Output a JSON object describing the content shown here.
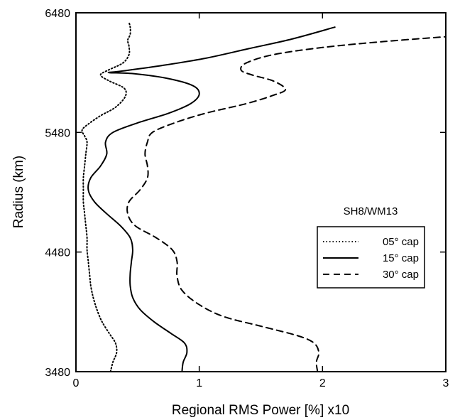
{
  "chart_data": {
    "type": "line",
    "title": "",
    "xlabel": "Regional RMS Power [%] x10",
    "ylabel": "Radius (km)",
    "xlim": [
      0,
      3
    ],
    "ylim": [
      3480,
      6480
    ],
    "xticks": [
      "0",
      "1",
      "2",
      "3"
    ],
    "yticks": [
      "3480",
      "4480",
      "5480",
      "6480"
    ],
    "grid": false,
    "legend": {
      "title": "SH8/WM13",
      "placement": "right",
      "entries": [
        "05° cap",
        "15° cap",
        "30° cap"
      ]
    },
    "series": [
      {
        "name": "05° cap",
        "style": "dotted",
        "points": [
          [
            0.28,
            3480
          ],
          [
            0.3,
            3560
          ],
          [
            0.33,
            3640
          ],
          [
            0.32,
            3720
          ],
          [
            0.27,
            3800
          ],
          [
            0.21,
            3900
          ],
          [
            0.17,
            4000
          ],
          [
            0.14,
            4100
          ],
          [
            0.12,
            4200
          ],
          [
            0.11,
            4300
          ],
          [
            0.1,
            4400
          ],
          [
            0.09,
            4500
          ],
          [
            0.09,
            4600
          ],
          [
            0.08,
            4700
          ],
          [
            0.07,
            4800
          ],
          [
            0.06,
            4900
          ],
          [
            0.06,
            5000
          ],
          [
            0.06,
            5100
          ],
          [
            0.07,
            5200
          ],
          [
            0.08,
            5300
          ],
          [
            0.09,
            5400
          ],
          [
            0.07,
            5450
          ],
          [
            0.05,
            5500
          ],
          [
            0.1,
            5550
          ],
          [
            0.2,
            5620
          ],
          [
            0.32,
            5690
          ],
          [
            0.4,
            5780
          ],
          [
            0.39,
            5850
          ],
          [
            0.27,
            5910
          ],
          [
            0.2,
            5960
          ],
          [
            0.26,
            6000
          ],
          [
            0.38,
            6060
          ],
          [
            0.43,
            6130
          ],
          [
            0.43,
            6200
          ],
          [
            0.42,
            6250
          ],
          [
            0.44,
            6300
          ],
          [
            0.44,
            6360
          ],
          [
            0.43,
            6400
          ]
        ]
      },
      {
        "name": "15° cap",
        "style": "solid",
        "points": [
          [
            0.86,
            3480
          ],
          [
            0.87,
            3560
          ],
          [
            0.9,
            3640
          ],
          [
            0.88,
            3720
          ],
          [
            0.77,
            3800
          ],
          [
            0.63,
            3900
          ],
          [
            0.52,
            4000
          ],
          [
            0.46,
            4100
          ],
          [
            0.44,
            4200
          ],
          [
            0.44,
            4300
          ],
          [
            0.45,
            4400
          ],
          [
            0.46,
            4500
          ],
          [
            0.44,
            4600
          ],
          [
            0.36,
            4700
          ],
          [
            0.25,
            4800
          ],
          [
            0.15,
            4900
          ],
          [
            0.1,
            5000
          ],
          [
            0.12,
            5100
          ],
          [
            0.2,
            5200
          ],
          [
            0.25,
            5300
          ],
          [
            0.24,
            5400
          ],
          [
            0.3,
            5480
          ],
          [
            0.5,
            5560
          ],
          [
            0.75,
            5640
          ],
          [
            0.93,
            5720
          ],
          [
            1.0,
            5800
          ],
          [
            0.95,
            5870
          ],
          [
            0.75,
            5930
          ],
          [
            0.48,
            5970
          ],
          [
            0.27,
            5980
          ],
          [
            0.35,
            5990
          ],
          [
            0.7,
            6040
          ],
          [
            1.05,
            6100
          ],
          [
            1.4,
            6180
          ],
          [
            1.75,
            6260
          ],
          [
            2.1,
            6360
          ]
        ]
      },
      {
        "name": "30° cap",
        "style": "dashed",
        "points": [
          [
            1.96,
            3480
          ],
          [
            1.95,
            3560
          ],
          [
            1.97,
            3640
          ],
          [
            1.93,
            3720
          ],
          [
            1.8,
            3780
          ],
          [
            1.5,
            3860
          ],
          [
            1.2,
            3940
          ],
          [
            1.0,
            4040
          ],
          [
            0.86,
            4160
          ],
          [
            0.82,
            4280
          ],
          [
            0.82,
            4400
          ],
          [
            0.78,
            4500
          ],
          [
            0.65,
            4600
          ],
          [
            0.48,
            4700
          ],
          [
            0.42,
            4800
          ],
          [
            0.43,
            4900
          ],
          [
            0.52,
            5000
          ],
          [
            0.58,
            5100
          ],
          [
            0.58,
            5200
          ],
          [
            0.56,
            5300
          ],
          [
            0.58,
            5400
          ],
          [
            0.62,
            5480
          ],
          [
            0.8,
            5560
          ],
          [
            1.05,
            5640
          ],
          [
            1.38,
            5720
          ],
          [
            1.6,
            5790
          ],
          [
            1.7,
            5840
          ],
          [
            1.6,
            5910
          ],
          [
            1.43,
            5960
          ],
          [
            1.34,
            6000
          ],
          [
            1.38,
            6060
          ],
          [
            1.6,
            6130
          ],
          [
            2.0,
            6190
          ],
          [
            2.5,
            6240
          ],
          [
            3.0,
            6280
          ]
        ]
      }
    ]
  }
}
